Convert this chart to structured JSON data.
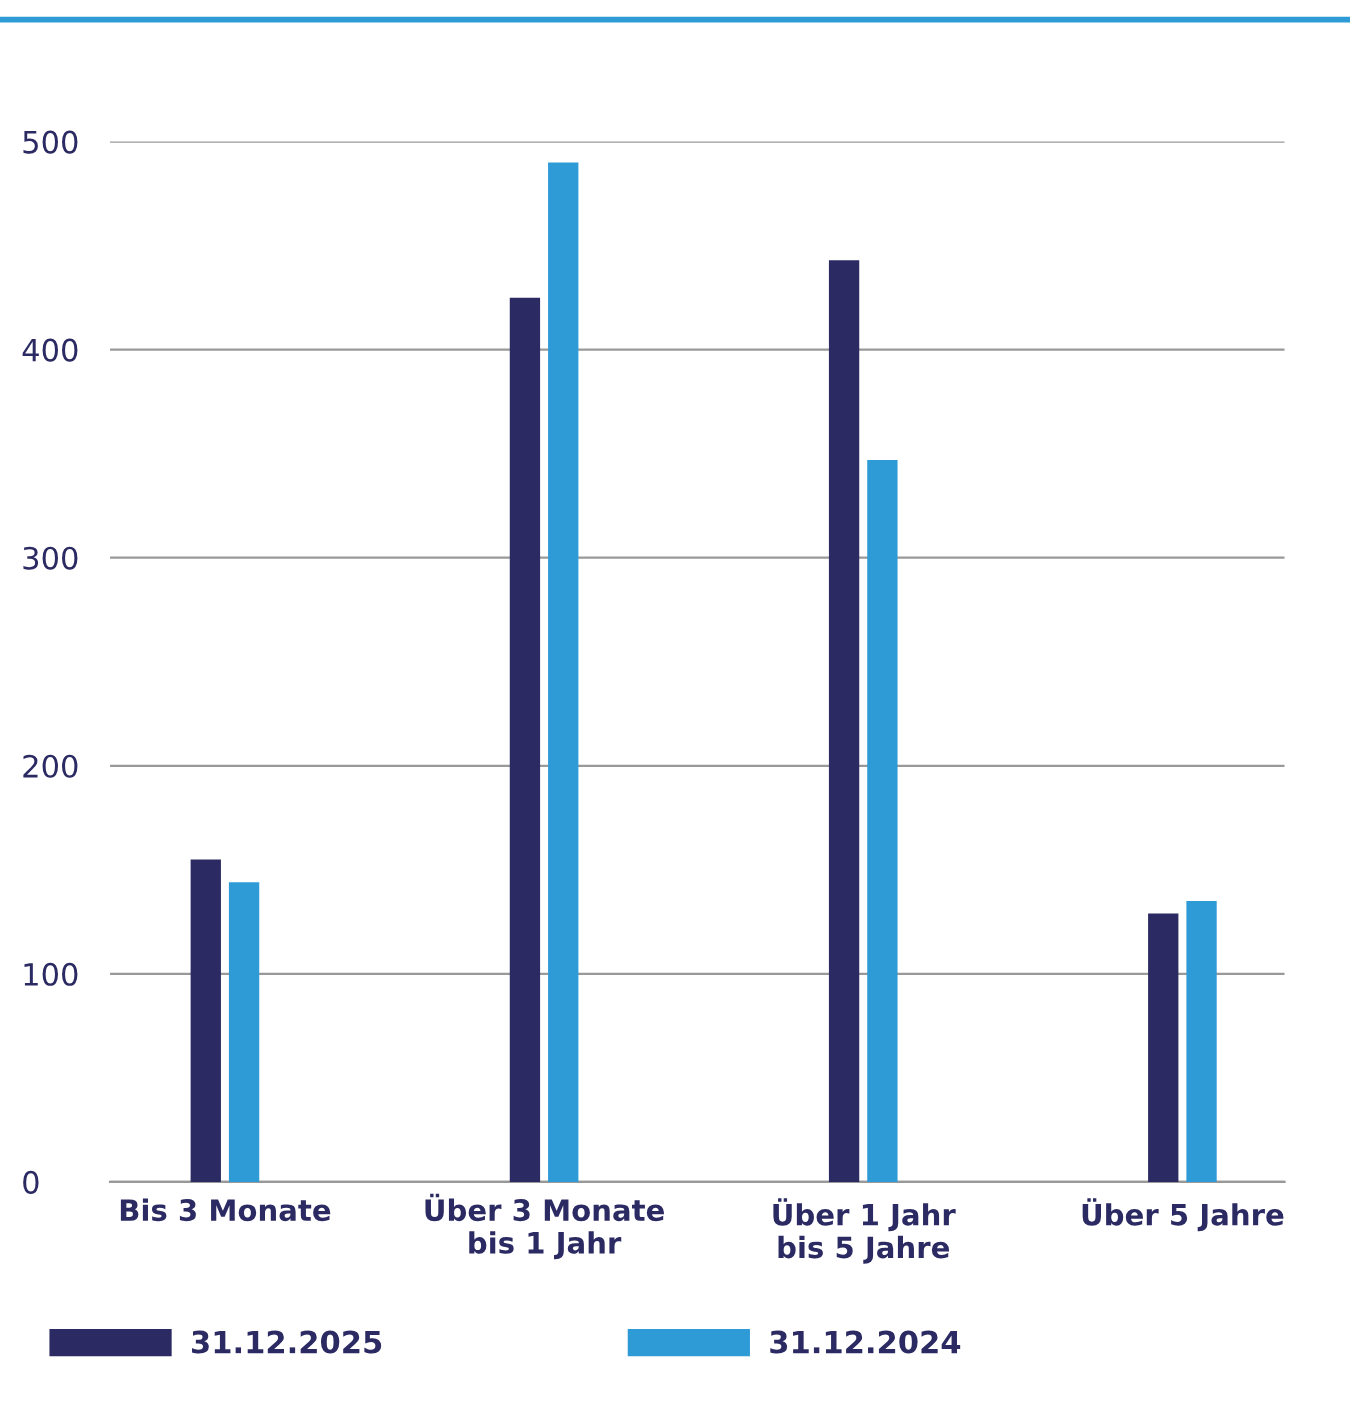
{
  "chart_data": {
    "type": "bar",
    "categories": [
      "Bis 3 Monate",
      "Über 3 Monate\nbis 1 Jahr",
      "Über 1 Jahr\nbis 5 Jahre",
      "Über 5 Jahre"
    ],
    "series": [
      {
        "name": "31.12.2025",
        "color": "#2b2a62",
        "values": [
          155,
          425,
          443,
          129
        ]
      },
      {
        "name": "31.12.2024",
        "color": "#2e9bd6",
        "values": [
          144,
          490,
          347,
          135
        ]
      }
    ],
    "ylim": [
      0,
      500
    ],
    "yticks": [
      0,
      100,
      200,
      300,
      400,
      500
    ],
    "grid": "y",
    "legend": "bottom left"
  }
}
